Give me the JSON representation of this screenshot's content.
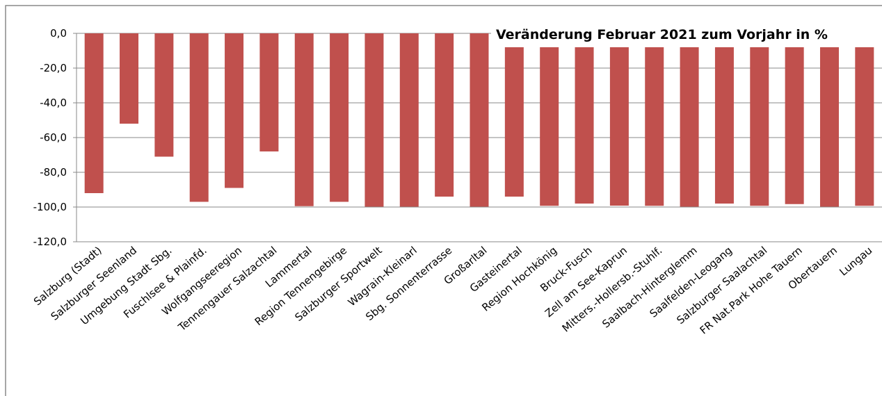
{
  "chart_data": {
    "type": "bar",
    "title": "Veränderung Februar 2021 zum Vorjahr in %",
    "categories": [
      "Salzburg (Stadt)",
      "Salzburger Seenland",
      "Umgebung Stadt Sbg.",
      "Fuschlsee & Plainfd.",
      "Wolfgangseeregion",
      "Tennengauer Salzachtal",
      "Lammertal",
      "Region Tennengebirge",
      "Salzburger Sportwelt",
      "Wagrain-Kleinarl",
      "Sbg. Sonnenterrasse",
      "Großarltal",
      "Gasteinertal",
      "Region Hochkönig",
      "Bruck-Fusch",
      "Zell am See-Kaprun",
      "Mitters.-Hollersb.-Stuhlf.",
      "Saalbach-Hinterglemm",
      "Saalfelden-Leogang",
      "Salzburger Saalachtal",
      "FR Nat.Park Hohe Tauern",
      "Obertauern",
      "Lungau"
    ],
    "values": [
      -92,
      -52,
      -71,
      -97,
      -89,
      -68,
      -99.5,
      -97,
      -99.8,
      -99.8,
      -94,
      -99.8,
      -94,
      -99.3,
      -98,
      -99.2,
      -99.3,
      -99.8,
      -98,
      -99.3,
      -98.3,
      -99.8,
      -99.3
    ],
    "color": "#c0504d",
    "ylim": [
      -120,
      0
    ],
    "yticks": [
      {
        "value": 0,
        "label": "0,0"
      },
      {
        "value": -20,
        "label": "-20,0"
      },
      {
        "value": -40,
        "label": "-40,0"
      },
      {
        "value": -60,
        "label": "-60,0"
      },
      {
        "value": -80,
        "label": "-80,0"
      },
      {
        "value": -100,
        "label": "-100,0"
      },
      {
        "value": -120,
        "label": "-120,0"
      }
    ],
    "grid": true
  }
}
